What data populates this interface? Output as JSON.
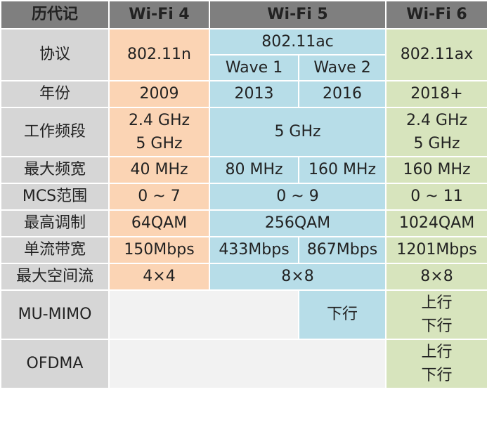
{
  "header": {
    "col0": "历代记",
    "wifi4": "Wi-Fi 4",
    "wifi5": "Wi-Fi 5",
    "wifi6": "Wi-Fi 6"
  },
  "rows": {
    "protocol": {
      "label": "协议",
      "wifi4": "802.11n",
      "wifi5": "802.11ac",
      "wave1": "Wave 1",
      "wave2": "Wave 2",
      "wifi6": "802.11ax"
    },
    "year": {
      "label": "年份",
      "wifi4": "2009",
      "wave1": "2013",
      "wave2": "2016",
      "wifi6": "2018+"
    },
    "band": {
      "label": "工作频段",
      "wifi4_a": "2.4 GHz",
      "wifi4_b": "5 GHz",
      "wifi5": "5 GHz",
      "wifi6_a": "2.4 GHz",
      "wifi6_b": "5 GHz"
    },
    "bandwidth": {
      "label": "最大频宽",
      "wifi4": "40 MHz",
      "wave1": "80 MHz",
      "wave2": "160 MHz",
      "wifi6": "160 MHz"
    },
    "mcs": {
      "label": "MCS范围",
      "wifi4": "0 ~ 7",
      "wifi5": "0 ~ 9",
      "wifi6": "0 ~ 11"
    },
    "modulation": {
      "label": "最高调制",
      "wifi4": "64QAM",
      "wifi5": "256QAM",
      "wifi6": "1024QAM"
    },
    "stream_rate": {
      "label": "单流带宽",
      "wifi4": "150Mbps",
      "wave1": "433Mbps",
      "wave2": "867Mbps",
      "wifi6": "1201Mbps"
    },
    "spatial": {
      "label": "最大空间流",
      "wifi4": "4×4",
      "wifi5": "8×8",
      "wifi6": "8×8"
    },
    "mumimo": {
      "label": "MU-MIMO",
      "wave2": "下行",
      "wifi6_a": "上行",
      "wifi6_b": "下行"
    },
    "ofdma": {
      "label": "OFDMA",
      "wifi6_a": "上行",
      "wifi6_b": "下行"
    }
  },
  "colors": {
    "header": "#7f7f7f",
    "label": "#d6d6d6",
    "wifi4": "#fbd4b4",
    "wifi5": "#b7dde8",
    "wifi6": "#d7e4bd",
    "blank": "#f2f2f2"
  }
}
